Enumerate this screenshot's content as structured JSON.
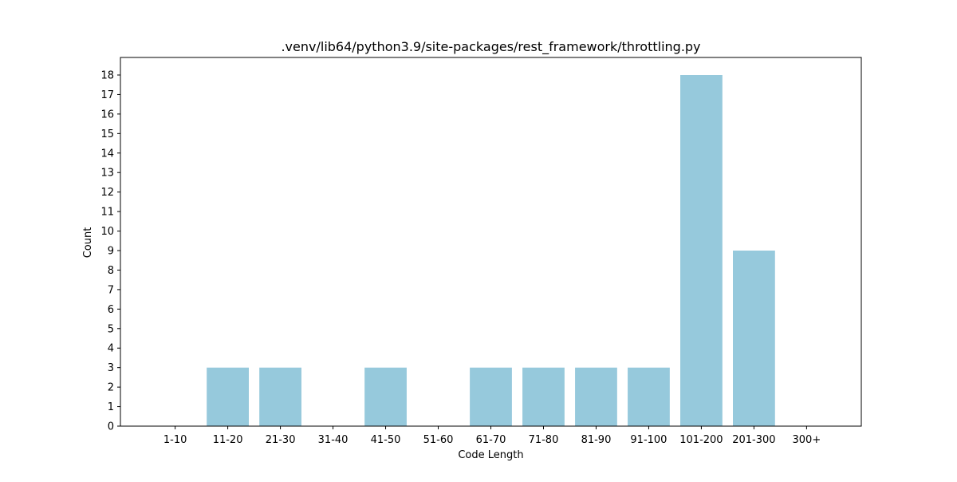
{
  "chart_data": {
    "type": "bar",
    "title": ".venv/lib64/python3.9/site-packages/rest_framework/throttling.py",
    "xlabel": "Code Length",
    "ylabel": "Count",
    "categories": [
      "1-10",
      "11-20",
      "21-30",
      "31-40",
      "41-50",
      "51-60",
      "61-70",
      "71-80",
      "81-90",
      "91-100",
      "101-200",
      "201-300",
      "300+"
    ],
    "values": [
      0,
      3,
      3,
      0,
      3,
      0,
      3,
      3,
      3,
      3,
      18,
      9,
      0
    ],
    "ylim": [
      0,
      18.9
    ],
    "yticks": [
      0,
      1,
      2,
      3,
      4,
      5,
      6,
      7,
      8,
      9,
      10,
      11,
      12,
      13,
      14,
      15,
      16,
      17,
      18
    ],
    "bar_color": "#96c9dc",
    "grid": false
  }
}
